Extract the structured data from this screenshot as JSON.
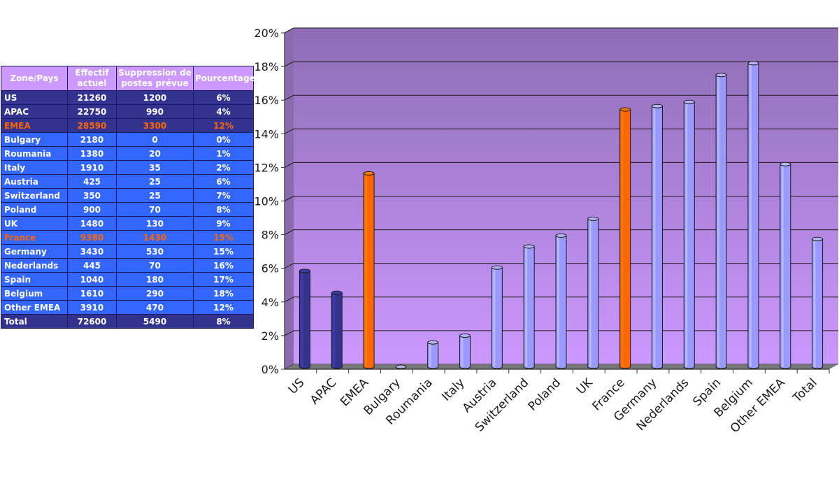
{
  "table": {
    "headers": [
      "Zone/Pays",
      "Effectif actuel",
      "Suppression de postes prévue",
      "Pourcentage"
    ],
    "rows": [
      {
        "zone": "US",
        "effectif": "21260",
        "suppression": "1200",
        "pct": "6%",
        "style": "dark"
      },
      {
        "zone": "APAC",
        "effectif": "22750",
        "suppression": "990",
        "pct": "4%",
        "style": "dark"
      },
      {
        "zone": "EMEA",
        "effectif": "28590",
        "suppression": "3300",
        "pct": "12%",
        "style": "dark",
        "highlight": true
      },
      {
        "zone": "Bulgary",
        "effectif": "2180",
        "suppression": "0",
        "pct": "0%",
        "style": "light"
      },
      {
        "zone": "Roumania",
        "effectif": "1380",
        "suppression": "20",
        "pct": "1%",
        "style": "light"
      },
      {
        "zone": "Italy",
        "effectif": "1910",
        "suppression": "35",
        "pct": "2%",
        "style": "light"
      },
      {
        "zone": "Austria",
        "effectif": "425",
        "suppression": "25",
        "pct": "6%",
        "style": "light"
      },
      {
        "zone": "Switzerland",
        "effectif": "350",
        "suppression": "25",
        "pct": "7%",
        "style": "light"
      },
      {
        "zone": "Poland",
        "effectif": "900",
        "suppression": "70",
        "pct": "8%",
        "style": "light"
      },
      {
        "zone": "UK",
        "effectif": "1480",
        "suppression": "130",
        "pct": "9%",
        "style": "light"
      },
      {
        "zone": "France",
        "effectif": "9380",
        "suppression": "1430",
        "pct": "15%",
        "style": "light",
        "highlight": true
      },
      {
        "zone": "Germany",
        "effectif": "3430",
        "suppression": "530",
        "pct": "15%",
        "style": "light"
      },
      {
        "zone": "Nederlands",
        "effectif": "445",
        "suppression": "70",
        "pct": "16%",
        "style": "light"
      },
      {
        "zone": "Spain",
        "effectif": "1040",
        "suppression": "180",
        "pct": "17%",
        "style": "light"
      },
      {
        "zone": "Belgium",
        "effectif": "1610",
        "suppression": "290",
        "pct": "18%",
        "style": "light"
      },
      {
        "zone": "Other EMEA",
        "effectif": "3910",
        "suppression": "470",
        "pct": "12%",
        "style": "light"
      },
      {
        "zone": "Total",
        "effectif": "72600",
        "suppression": "5490",
        "pct": "8%",
        "style": "dark"
      }
    ]
  },
  "chart_data": {
    "type": "bar",
    "categories": [
      "US",
      "APAC",
      "EMEA",
      "Bulgary",
      "Roumania",
      "Italy",
      "Austria",
      "Switzerland",
      "Poland",
      "UK",
      "France",
      "Germany",
      "Nederlands",
      "Spain",
      "Belgium",
      "Other EMEA",
      "Total"
    ],
    "values": [
      5.7,
      4.4,
      11.5,
      0,
      1.45,
      1.85,
      5.9,
      7.15,
      7.8,
      8.8,
      15.3,
      15.5,
      15.75,
      17.35,
      18.05,
      12.05,
      7.6
    ],
    "bar_colors": [
      "#33338f",
      "#33338f",
      "#ff6600",
      "#9999ff",
      "#9999ff",
      "#9999ff",
      "#9999ff",
      "#9999ff",
      "#9999ff",
      "#9999ff",
      "#ff6600",
      "#9999ff",
      "#9999ff",
      "#9999ff",
      "#9999ff",
      "#9999ff",
      "#9999ff"
    ],
    "ylim": [
      0,
      20
    ],
    "yticks": [
      0,
      2,
      4,
      6,
      8,
      10,
      12,
      14,
      16,
      18,
      20
    ],
    "ytick_labels": [
      "0%",
      "2%",
      "4%",
      "6%",
      "8%",
      "10%",
      "12%",
      "14%",
      "16%",
      "18%",
      "20%"
    ],
    "grid": true,
    "title": "",
    "xlabel": "",
    "ylabel": "",
    "background_gradient": [
      "#8f6db5",
      "#cc99ff"
    ]
  },
  "colors": {
    "header_bg": "#cc99ff",
    "row_dark": "#33338f",
    "row_light": "#3366ff",
    "highlight_text": "#ff6600",
    "border": "#1a1a66"
  }
}
